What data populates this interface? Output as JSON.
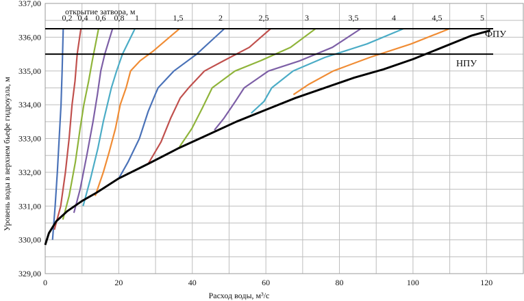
{
  "chart_data": {
    "type": "line",
    "title": "",
    "xlabel": "Расход воды, м³/с",
    "ylabel": "Уровень воды в верхнем бьефе гидроузла, м",
    "xlim": [
      0,
      130
    ],
    "ylim": [
      329,
      337
    ],
    "x_ticks": [
      "0",
      "20",
      "40",
      "60",
      "80",
      "100",
      "120"
    ],
    "y_ticks": [
      "329,00",
      "330,00",
      "331,00",
      "332,00",
      "333,00",
      "334,00",
      "335,00",
      "336,00",
      "337,00"
    ],
    "opening_caption": "открытие затвора, м",
    "reference_lines": [
      {
        "name": "ФПУ",
        "y": 336.25
      },
      {
        "name": "НПУ",
        "y": 335.5
      }
    ],
    "envelope": {
      "name": "envelope",
      "color": "#000000",
      "x": [
        0,
        1,
        3,
        6,
        10,
        14,
        20,
        28,
        36,
        44,
        52,
        60,
        68,
        76,
        84,
        92,
        100,
        108,
        116,
        121
      ],
      "y": [
        329.85,
        330.2,
        330.55,
        330.85,
        331.15,
        331.4,
        331.82,
        332.25,
        332.7,
        333.1,
        333.5,
        333.85,
        334.2,
        334.5,
        334.8,
        335.05,
        335.35,
        335.7,
        336.05,
        336.2
      ]
    },
    "series": [
      {
        "name": "0,2",
        "color": "#4a72b8",
        "x": [
          2.0,
          2.7,
          3.3,
          3.8,
          4.3,
          4.6,
          4.9
        ],
        "y": [
          330.0,
          331.0,
          332.0,
          333.0,
          334.0,
          335.0,
          336.25
        ]
      },
      {
        "name": "0,4",
        "color": "#c0504d",
        "x": [
          2.5,
          4.2,
          5.5,
          6.5,
          7.3,
          8.1,
          8.7,
          9.7
        ],
        "y": [
          330.3,
          331.0,
          332.0,
          333.0,
          334.0,
          334.7,
          335.5,
          336.25
        ]
      },
      {
        "name": "0,6",
        "color": "#8fb43a",
        "x": [
          4.8,
          6.5,
          8.2,
          9.5,
          10.5,
          11.8,
          12.8,
          14.5
        ],
        "y": [
          330.6,
          331.3,
          332.3,
          333.3,
          334.0,
          334.7,
          335.3,
          336.25
        ]
      },
      {
        "name": "0,8",
        "color": "#7d5fa6",
        "x": [
          7.8,
          9.5,
          11.3,
          13.0,
          14.2,
          15.1,
          16.2,
          18.3
        ],
        "y": [
          330.8,
          331.5,
          332.5,
          333.5,
          334.3,
          335.0,
          335.5,
          336.25
        ]
      },
      {
        "name": "1",
        "color": "#4bacc6",
        "x": [
          10.3,
          12.3,
          14.3,
          15.8,
          16.9,
          18.0,
          19.4,
          21.0,
          24.4
        ],
        "y": [
          331.0,
          331.8,
          332.7,
          333.5,
          334.0,
          334.5,
          335.0,
          335.5,
          336.25
        ]
      },
      {
        "name": "1,5",
        "color": "#f08c34",
        "x": [
          13.6,
          15.8,
          17.4,
          19.1,
          20.4,
          22.0,
          23.2,
          25.8,
          29.5,
          36.5
        ],
        "y": [
          331.3,
          332.0,
          332.6,
          333.3,
          334.0,
          334.5,
          335.0,
          335.3,
          335.6,
          336.25
        ]
      },
      {
        "name": "2",
        "color": "#4a72b8",
        "x": [
          20.0,
          22.5,
          25.6,
          28.0,
          29.9,
          30.7,
          35.0,
          41.2,
          48.7
        ],
        "y": [
          331.82,
          332.3,
          333.0,
          333.8,
          334.3,
          334.5,
          335.0,
          335.5,
          336.25
        ]
      },
      {
        "name": "2,5",
        "color": "#c0504d",
        "x": [
          28.0,
          31.5,
          34.1,
          36.7,
          39.0,
          43.3,
          48.5,
          55.5,
          61.3
        ],
        "y": [
          332.25,
          332.9,
          333.6,
          334.2,
          334.5,
          335.0,
          335.3,
          335.7,
          336.25
        ]
      },
      {
        "name": "3",
        "color": "#8fb43a",
        "x": [
          36.5,
          39.9,
          42.7,
          45.4,
          51.6,
          58.5,
          66.7,
          73.5
        ],
        "y": [
          332.75,
          333.3,
          333.9,
          334.5,
          335.0,
          335.3,
          335.7,
          336.25
        ]
      },
      {
        "name": "3,5",
        "color": "#7d5fa6",
        "x": [
          46.0,
          48.6,
          51.7,
          54.1,
          60.7,
          69.2,
          78.1,
          85.8
        ],
        "y": [
          333.25,
          333.6,
          334.1,
          334.5,
          335.0,
          335.3,
          335.7,
          336.25
        ]
      },
      {
        "name": "4",
        "color": "#4bacc6",
        "x": [
          56.0,
          59.5,
          61.6,
          67.4,
          76.0,
          87.5,
          97.4
        ],
        "y": [
          333.75,
          334.1,
          334.5,
          335.0,
          335.4,
          335.8,
          336.25
        ]
      },
      {
        "name": "4,5",
        "color": "#f08c34",
        "x": [
          67.5,
          71.6,
          78.3,
          88.2,
          99.5,
          109.9
        ],
        "y": [
          334.3,
          334.6,
          335.0,
          335.4,
          335.8,
          336.25
        ]
      },
      {
        "name": "5",
        "color": "#000000",
        "x": [],
        "y": []
      }
    ]
  }
}
